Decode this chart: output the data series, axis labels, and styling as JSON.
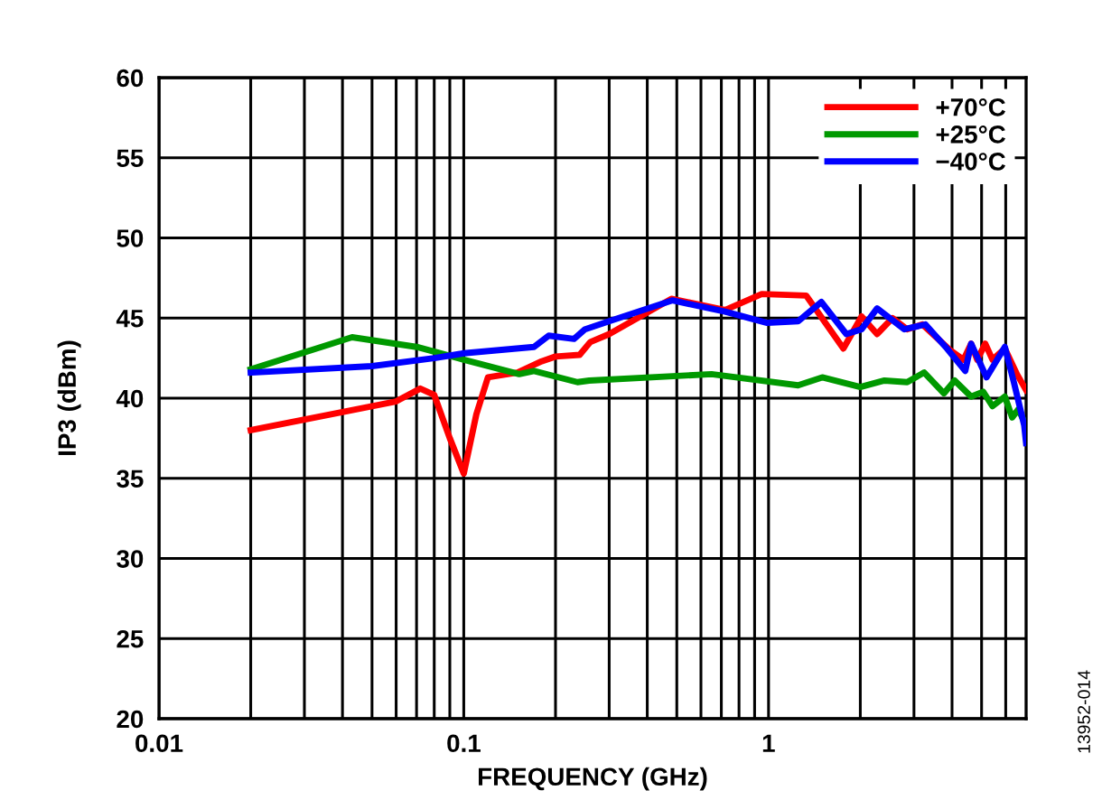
{
  "chart_data": {
    "type": "line",
    "xlabel": "FREQUENCY (GHz)",
    "ylabel": "IP3 (dBm)",
    "log": "x",
    "xlim": [
      0.01,
      7
    ],
    "ylim": [
      20,
      60
    ],
    "yticks": [
      20,
      25,
      30,
      35,
      40,
      45,
      50,
      55,
      60
    ],
    "xticks": [
      0.01,
      {
        "value": 0.02,
        "label": null
      },
      {
        "value": 0.03,
        "label": null
      },
      {
        "value": 0.04,
        "label": null
      },
      {
        "value": 0.05,
        "label": null
      },
      {
        "value": 0.06,
        "label": null
      },
      {
        "value": 0.07,
        "label": null
      },
      {
        "value": 0.08,
        "label": null
      },
      {
        "value": 0.09,
        "label": null
      },
      0.1,
      {
        "value": 0.2,
        "label": null
      },
      {
        "value": 0.3,
        "label": null
      },
      {
        "value": 0.4,
        "label": null
      },
      {
        "value": 0.5,
        "label": null
      },
      {
        "value": 0.6,
        "label": null
      },
      {
        "value": 0.7,
        "label": null
      },
      {
        "value": 0.8,
        "label": null
      },
      {
        "value": 0.9,
        "label": null
      },
      1,
      {
        "value": 2,
        "label": null
      },
      {
        "value": 3,
        "label": null
      },
      {
        "value": 4,
        "label": null
      },
      {
        "value": 5,
        "label": null
      },
      {
        "value": 6,
        "label": null
      }
    ],
    "grid": true,
    "legend": "top right",
    "line_style": "solid",
    "marker": "none",
    "annotations": [
      "13952-014"
    ],
    "series": [
      {
        "name": "+70°C",
        "color": "#ff0000",
        "x": [
          0.02,
          0.06,
          0.072,
          0.08,
          0.09,
          0.1,
          0.11,
          0.12,
          0.15,
          0.18,
          0.2,
          0.24,
          0.26,
          0.3,
          0.48,
          0.72,
          0.95,
          1.33,
          1.76,
          2.02,
          2.27,
          2.55,
          2.85,
          3.2,
          3.94,
          4.36,
          4.62,
          4.84,
          5.14,
          5.43,
          5.96,
          6.53,
          7.0
        ],
        "values": [
          38.0,
          39.8,
          40.6,
          40.2,
          37.5,
          35.3,
          39.0,
          41.3,
          41.6,
          42.3,
          42.6,
          42.7,
          43.5,
          44.0,
          46.2,
          45.5,
          46.5,
          46.4,
          43.1,
          45.1,
          44.0,
          45.0,
          44.3,
          44.6,
          43.0,
          42.4,
          43.4,
          42.4,
          43.4,
          42.4,
          43.1,
          41.5,
          40.5
        ]
      },
      {
        "name": "+25°C",
        "color": "#009900",
        "x": [
          0.02,
          0.043,
          0.07,
          0.1,
          0.152,
          0.17,
          0.236,
          0.258,
          0.65,
          1.25,
          1.5,
          2.0,
          2.4,
          2.85,
          3.24,
          3.76,
          4.08,
          4.62,
          5.06,
          5.43,
          5.96,
          6.3,
          6.6,
          7.0
        ],
        "values": [
          41.8,
          43.8,
          43.2,
          42.4,
          41.5,
          41.7,
          41.0,
          41.1,
          41.5,
          40.8,
          41.3,
          40.7,
          41.1,
          41.0,
          41.6,
          40.3,
          41.1,
          40.1,
          40.4,
          39.5,
          40.1,
          38.8,
          39.3,
          38.3
        ]
      },
      {
        "name": "−40°C",
        "color": "#0000ff",
        "x": [
          0.02,
          0.05,
          0.08,
          0.1,
          0.17,
          0.19,
          0.23,
          0.25,
          0.3,
          0.483,
          0.72,
          0.99,
          1.25,
          1.49,
          1.8,
          2.02,
          2.27,
          2.79,
          3.27,
          3.85,
          4.42,
          4.62,
          5.19,
          5.96,
          6.38,
          6.9,
          7.0
        ],
        "values": [
          41.6,
          42.0,
          42.5,
          42.8,
          43.2,
          43.9,
          43.7,
          44.3,
          44.8,
          46.1,
          45.4,
          44.7,
          44.8,
          46.0,
          44.0,
          44.3,
          45.6,
          44.3,
          44.6,
          43.1,
          41.7,
          43.4,
          41.3,
          43.2,
          41.0,
          38.3,
          37.2
        ]
      }
    ]
  }
}
